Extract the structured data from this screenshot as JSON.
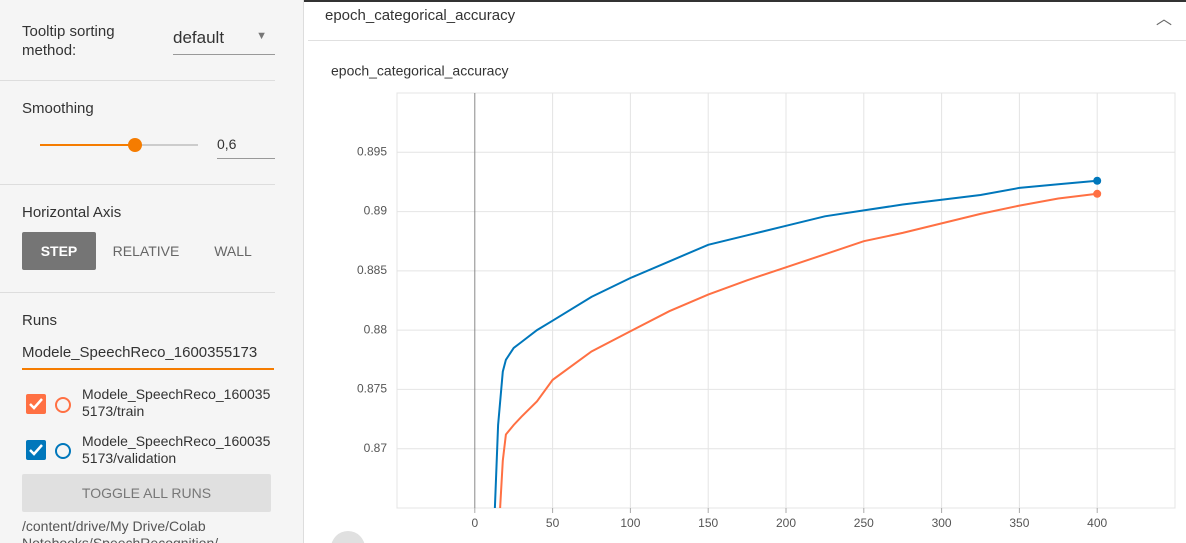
{
  "sidebar": {
    "tooltip_label": "Tooltip sorting method:",
    "tooltip_value": "default",
    "smoothing_label": "Smoothing",
    "smoothing": {
      "value": 0.6,
      "label": "0,6"
    },
    "horizontal_axis_label": "Horizontal Axis",
    "axis_options": [
      "STEP",
      "RELATIVE",
      "WALL"
    ],
    "runs_label": "Runs",
    "runs_filter": "Modele_SpeechReco_1600355173",
    "toggle_all": "TOGGLE ALL RUNS",
    "log_dir": "/content/drive/My Drive/Colab Notebooks/SpeechRecognition/"
  },
  "card_title": "epoch_categorical_accuracy",
  "chart_data": {
    "type": "line",
    "title": "epoch_categorical_accuracy",
    "x": [
      12,
      15,
      18,
      20,
      25,
      30,
      40,
      50,
      75,
      100,
      125,
      150,
      175,
      200,
      225,
      250,
      275,
      300,
      325,
      350,
      375,
      400
    ],
    "series": [
      {
        "name": "Modele_SpeechReco_1600355173/train",
        "color": "#ff7043",
        "values": [
          null,
          0.862,
          0.869,
          0.8712,
          0.872,
          0.8727,
          0.874,
          0.8758,
          0.8782,
          0.8799,
          0.8816,
          0.883,
          0.8842,
          0.8853,
          0.8864,
          0.8875,
          0.8882,
          0.889,
          0.8898,
          0.8905,
          0.8911,
          0.8915
        ]
      },
      {
        "name": "Modele_SpeechReco_1600355173/validation",
        "color": "#0077bb",
        "values": [
          0.862,
          0.872,
          0.8765,
          0.8775,
          0.8785,
          0.879,
          0.88,
          0.8808,
          0.8828,
          0.8844,
          0.8858,
          0.8872,
          0.888,
          0.8888,
          0.8896,
          0.8901,
          0.8906,
          0.891,
          0.8914,
          0.892,
          0.8923,
          0.8926
        ]
      }
    ],
    "xlim": [
      -50,
      450
    ],
    "xticks": [
      0,
      50,
      100,
      150,
      200,
      250,
      300,
      350,
      400
    ],
    "ylim": [
      0.865,
      0.9
    ],
    "yticks": [
      0.87,
      0.875,
      0.88,
      0.885,
      0.89,
      0.895
    ],
    "grid": true
  }
}
